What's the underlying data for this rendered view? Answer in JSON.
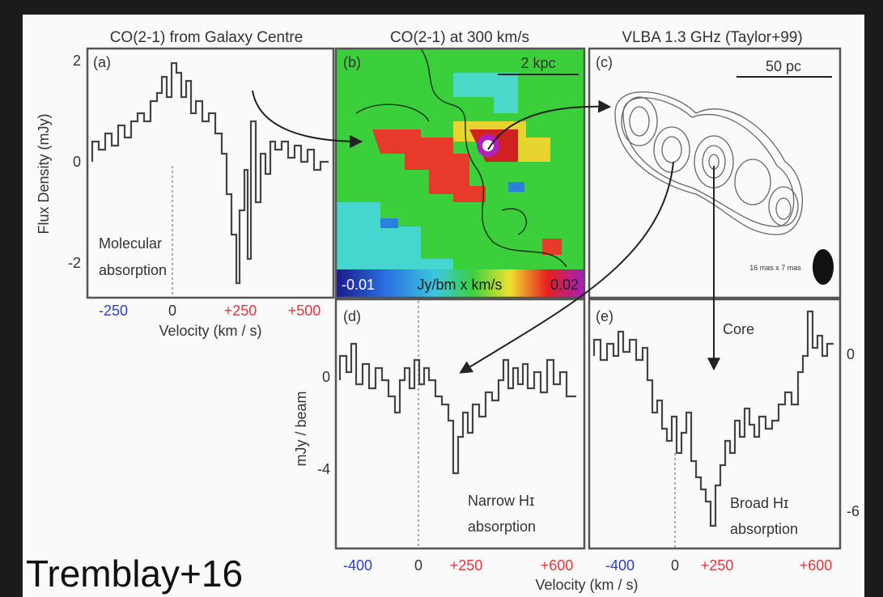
{
  "headers": [
    "CO(2-1) from Galaxy Centre",
    "CO(2-1) at 300 km/s",
    "VLBA 1.3 GHz  (Taylor+99)"
  ],
  "panel_a": {
    "tag": "(a)",
    "y_label": "Flux Density (mJy)",
    "y_ticks": [
      "2",
      "0",
      "-2"
    ],
    "note": [
      "Molecular",
      "absorption"
    ],
    "x_ticks": [
      "-250",
      "0",
      "+250",
      "+500"
    ],
    "x_label": "Velocity (km / s)"
  },
  "panel_b": {
    "tag": "(b)",
    "scale": "2 kpc",
    "colorbar": [
      "-0.01",
      "Jy/bm x km/s",
      "0.02"
    ]
  },
  "panel_c": {
    "tag": "(c)",
    "scale": "50 pc",
    "beam": "16 mas x 7 mas"
  },
  "panel_d": {
    "tag": "(d)",
    "y_label": "mJy / beam",
    "y_ticks": [
      "0",
      "-4"
    ],
    "note": [
      "Narrow Hɪ",
      "absorption"
    ],
    "x_ticks": [
      "-400",
      "0",
      "+250",
      "+600"
    ]
  },
  "panel_e": {
    "tag": "(e)",
    "core": "Core",
    "y_ticks": [
      "0",
      "-6"
    ],
    "note": [
      "Broad Hɪ",
      "absorption"
    ],
    "x_ticks": [
      "-400",
      "0",
      "+250",
      "+600"
    ]
  },
  "bottom_x_label": "Velocity (km / s)",
  "credit": "Tremblay+16"
}
